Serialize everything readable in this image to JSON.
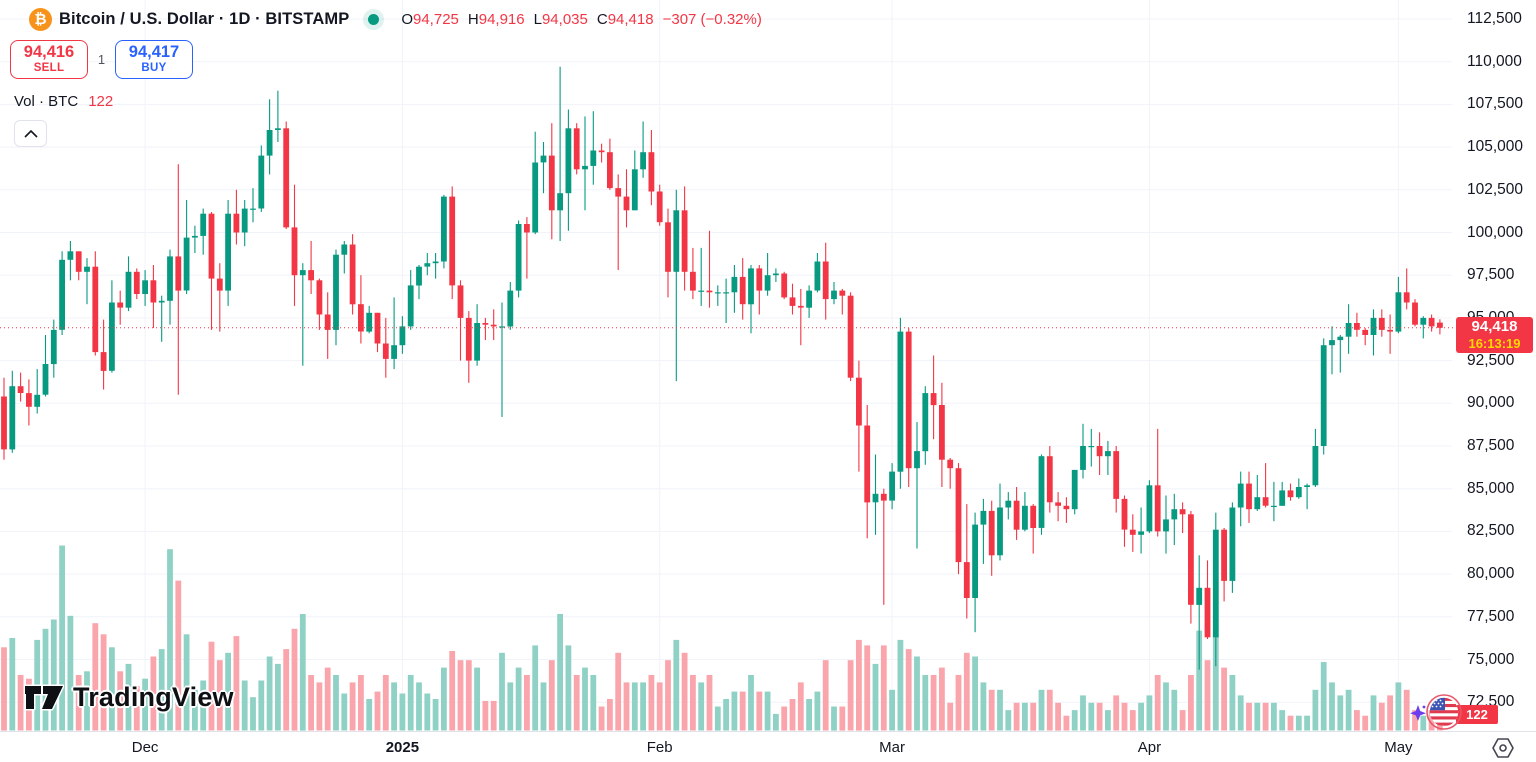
{
  "header": {
    "symbol_title": "Bitcoin / U.S. Dollar · 1D · BITSTAMP",
    "bitcoin_glyph": "₿",
    "ohlc": [
      {
        "label": "O",
        "value": "94,725"
      },
      {
        "label": "H",
        "value": "94,916"
      },
      {
        "label": "L",
        "value": "94,035"
      },
      {
        "label": "C",
        "value": "94,418"
      }
    ],
    "change_text": "−307 (−0.32%)",
    "sell_button": {
      "price": "94,416",
      "label": "SELL"
    },
    "spread": "1",
    "buy_button": {
      "price": "94,417",
      "label": "BUY"
    },
    "volume_row": {
      "label": "Vol · BTC",
      "value": "122"
    }
  },
  "watermark_text": "TradingView",
  "price_label": {
    "price": "94,418",
    "countdown": "16:13:19"
  },
  "volume_axis_label": "122",
  "time_axis": [
    {
      "label": "Dec",
      "candle_index": 17,
      "bold": false
    },
    {
      "label": "2025",
      "candle_index": 48,
      "bold": true
    },
    {
      "label": "Feb",
      "candle_index": 79,
      "bold": false
    },
    {
      "label": "Mar",
      "candle_index": 107,
      "bold": false
    },
    {
      "label": "Apr",
      "candle_index": 138,
      "bold": false
    },
    {
      "label": "May",
      "candle_index": 168,
      "bold": false
    }
  ],
  "colors": {
    "up": "#089981",
    "down": "#f23645",
    "volume_up": "#90d1c6",
    "volume_down": "#f9a5ab",
    "grid": "#f0f3fa",
    "axis_border": "#e0e3eb",
    "text": "#131722",
    "buy_blue": "#2962ff",
    "countdown_yellow": "#ffd800",
    "bitcoin_orange": "#f7931a"
  },
  "chart_data": {
    "type": "candlestick",
    "title": "Bitcoin / U.S. Dollar",
    "interval": "1D",
    "exchange": "BITSTAMP",
    "legend": [
      "price candles",
      "volume (BTC)"
    ],
    "current_price": 94418,
    "current_volume_btc": 122,
    "grid": true,
    "price_axis_ticks": [
      {
        "label": "112,500",
        "value": 112500
      },
      {
        "label": "110,000",
        "value": 110000
      },
      {
        "label": "107,500",
        "value": 107500
      },
      {
        "label": "105,000",
        "value": 105000
      },
      {
        "label": "102,500",
        "value": 102500
      },
      {
        "label": "100,000",
        "value": 100000
      },
      {
        "label": "97,500",
        "value": 97500
      },
      {
        "label": "95,000",
        "value": 95000
      },
      {
        "label": "92,500",
        "value": 92500
      },
      {
        "label": "90,000",
        "value": 90000
      },
      {
        "label": "87,500",
        "value": 87500
      },
      {
        "label": "85,000",
        "value": 85000
      },
      {
        "label": "82,500",
        "value": 82500
      },
      {
        "label": "80,000",
        "value": 80000
      },
      {
        "label": "77,500",
        "value": 77500
      },
      {
        "label": "75,000",
        "value": 75000
      },
      {
        "label": "72,500",
        "value": 72500
      }
    ],
    "candle_format": [
      "open",
      "high",
      "low",
      "close",
      "relative_volume"
    ],
    "candles": [
      [
        90400,
        91500,
        86700,
        87300,
        45
      ],
      [
        87300,
        91900,
        87100,
        91000,
        50
      ],
      [
        91000,
        91800,
        90100,
        90600,
        30
      ],
      [
        90600,
        91400,
        88700,
        89800,
        28
      ],
      [
        89800,
        92000,
        89400,
        90500,
        49
      ],
      [
        90500,
        94000,
        90400,
        92300,
        55
      ],
      [
        92300,
        94900,
        91500,
        94300,
        60
      ],
      [
        94300,
        98900,
        94000,
        98400,
        100
      ],
      [
        98400,
        99500,
        97200,
        98900,
        62
      ],
      [
        98900,
        98900,
        97200,
        97700,
        30
      ],
      [
        97700,
        98500,
        95800,
        98000,
        32
      ],
      [
        98000,
        98900,
        92800,
        93000,
        58
      ],
      [
        93000,
        94900,
        90800,
        91900,
        52
      ],
      [
        91900,
        97200,
        91800,
        95900,
        45
      ],
      [
        95900,
        96600,
        94600,
        95600,
        32
      ],
      [
        95600,
        98600,
        95400,
        97700,
        36
      ],
      [
        97700,
        97900,
        96100,
        96400,
        24
      ],
      [
        96400,
        97800,
        95700,
        97200,
        28
      ],
      [
        97200,
        98100,
        94400,
        95900,
        40
      ],
      [
        95900,
        96300,
        93600,
        96000,
        44
      ],
      [
        96000,
        99000,
        94600,
        98600,
        98
      ],
      [
        98600,
        104000,
        90500,
        96600,
        81
      ],
      [
        96600,
        101900,
        96400,
        99700,
        52
      ],
      [
        99700,
        100400,
        98800,
        99800,
        22
      ],
      [
        99800,
        101400,
        98700,
        101100,
        27
      ],
      [
        101100,
        101200,
        94300,
        97300,
        48
      ],
      [
        97300,
        98200,
        94200,
        96600,
        38
      ],
      [
        96600,
        101900,
        95700,
        101100,
        42
      ],
      [
        101100,
        102500,
        99300,
        100000,
        51
      ],
      [
        100000,
        101900,
        99200,
        101400,
        27
      ],
      [
        101400,
        102600,
        100600,
        101400,
        18
      ],
      [
        101400,
        105100,
        101200,
        104500,
        27
      ],
      [
        104500,
        107800,
        103400,
        106000,
        40
      ],
      [
        106000,
        108300,
        105300,
        106100,
        36
      ],
      [
        106100,
        106500,
        100200,
        100300,
        44
      ],
      [
        100300,
        102800,
        95700,
        97500,
        55
      ],
      [
        97500,
        98200,
        92200,
        97800,
        63
      ],
      [
        97800,
        99500,
        96400,
        97200,
        30
      ],
      [
        97200,
        97300,
        94300,
        95200,
        26
      ],
      [
        95200,
        96500,
        92600,
        94300,
        34
      ],
      [
        94300,
        99000,
        93400,
        98700,
        30
      ],
      [
        98700,
        99500,
        97600,
        99300,
        20
      ],
      [
        99300,
        99900,
        95200,
        95800,
        26
      ],
      [
        95800,
        97500,
        93500,
        94200,
        30
      ],
      [
        94200,
        95700,
        94100,
        95300,
        17
      ],
      [
        95300,
        95300,
        93000,
        93500,
        21
      ],
      [
        93500,
        95000,
        91500,
        92600,
        30
      ],
      [
        92600,
        96200,
        92000,
        93400,
        26
      ],
      [
        93400,
        95100,
        92900,
        94500,
        20
      ],
      [
        94500,
        97800,
        94300,
        96900,
        30
      ],
      [
        96900,
        98100,
        96100,
        98000,
        26
      ],
      [
        98000,
        98800,
        97500,
        98200,
        20
      ],
      [
        98200,
        98800,
        97300,
        98300,
        17
      ],
      [
        98300,
        102200,
        97900,
        102100,
        34
      ],
      [
        102100,
        102700,
        96100,
        96900,
        43
      ],
      [
        96900,
        97200,
        92500,
        95000,
        38
      ],
      [
        95000,
        95400,
        91200,
        92500,
        38
      ],
      [
        92500,
        95800,
        92200,
        94700,
        34
      ],
      [
        94700,
        95000,
        93700,
        94600,
        16
      ],
      [
        94600,
        95500,
        93700,
        94500,
        16
      ],
      [
        94500,
        95900,
        89200,
        94500,
        42
      ],
      [
        94500,
        97100,
        94300,
        96600,
        26
      ],
      [
        96600,
        100700,
        96200,
        100500,
        34
      ],
      [
        100500,
        100900,
        97300,
        100000,
        30
      ],
      [
        100000,
        105900,
        99900,
        104100,
        46
      ],
      [
        104100,
        105300,
        102300,
        104500,
        26
      ],
      [
        104500,
        106400,
        99600,
        101300,
        38
      ],
      [
        101300,
        109700,
        99500,
        102300,
        63
      ],
      [
        102300,
        107200,
        100100,
        106100,
        46
      ],
      [
        106100,
        106400,
        103400,
        103700,
        30
      ],
      [
        103700,
        106800,
        101300,
        103900,
        34
      ],
      [
        103900,
        107100,
        102800,
        104800,
        30
      ],
      [
        104800,
        105200,
        104100,
        104700,
        13
      ],
      [
        104700,
        105500,
        102500,
        102600,
        17
      ],
      [
        102600,
        103400,
        97800,
        102100,
        42
      ],
      [
        102100,
        103700,
        100300,
        101300,
        26
      ],
      [
        101300,
        104800,
        101300,
        103700,
        26
      ],
      [
        103700,
        106500,
        103200,
        104700,
        26
      ],
      [
        104700,
        106000,
        101600,
        102400,
        30
      ],
      [
        102400,
        102800,
        100400,
        100600,
        26
      ],
      [
        100600,
        101400,
        96200,
        97700,
        38
      ],
      [
        97700,
        102500,
        91300,
        101300,
        49
      ],
      [
        101300,
        102700,
        96600,
        97700,
        42
      ],
      [
        97700,
        99100,
        96100,
        96600,
        30
      ],
      [
        96600,
        99100,
        95700,
        96600,
        26
      ],
      [
        96600,
        100100,
        95600,
        96500,
        30
      ],
      [
        96500,
        96900,
        95700,
        96500,
        13
      ],
      [
        96500,
        97300,
        94700,
        96500,
        17
      ],
      [
        96500,
        98100,
        95300,
        97400,
        21
      ],
      [
        97400,
        98500,
        94900,
        95800,
        21
      ],
      [
        95800,
        98100,
        94100,
        97900,
        30
      ],
      [
        97900,
        98100,
        95200,
        96600,
        21
      ],
      [
        96600,
        98800,
        96300,
        97500,
        21
      ],
      [
        97500,
        97900,
        97100,
        97600,
        9
      ],
      [
        97600,
        97700,
        96100,
        96200,
        13
      ],
      [
        96200,
        97000,
        95200,
        95700,
        17
      ],
      [
        95700,
        96700,
        93400,
        95600,
        26
      ],
      [
        95600,
        96900,
        95000,
        96600,
        17
      ],
      [
        96600,
        98800,
        96500,
        98300,
        21
      ],
      [
        98300,
        99400,
        94900,
        96100,
        38
      ],
      [
        96100,
        97100,
        95800,
        96600,
        13
      ],
      [
        96600,
        96700,
        95200,
        96300,
        13
      ],
      [
        96300,
        96500,
        91300,
        91500,
        38
      ],
      [
        91500,
        92500,
        86000,
        88700,
        49
      ],
      [
        88700,
        89900,
        82100,
        84200,
        46
      ],
      [
        84200,
        87000,
        82300,
        84700,
        36
      ],
      [
        84700,
        85000,
        78200,
        84300,
        46
      ],
      [
        84300,
        86500,
        83800,
        86000,
        22
      ],
      [
        86000,
        95000,
        85000,
        94200,
        49
      ],
      [
        94200,
        94400,
        85100,
        86200,
        44
      ],
      [
        86200,
        88900,
        81500,
        87200,
        40
      ],
      [
        87200,
        91000,
        86400,
        90600,
        30
      ],
      [
        90600,
        92800,
        87900,
        89900,
        30
      ],
      [
        89900,
        91200,
        85100,
        86700,
        34
      ],
      [
        86700,
        86800,
        85000,
        86200,
        15
      ],
      [
        86200,
        86500,
        80000,
        80700,
        30
      ],
      [
        80700,
        84100,
        77400,
        78600,
        42
      ],
      [
        78600,
        83600,
        76600,
        82900,
        40
      ],
      [
        82900,
        84400,
        80600,
        83700,
        26
      ],
      [
        83700,
        84300,
        79900,
        81100,
        22
      ],
      [
        81100,
        85300,
        80800,
        83900,
        22
      ],
      [
        83900,
        84800,
        83200,
        84300,
        11
      ],
      [
        84300,
        85100,
        82000,
        82600,
        15
      ],
      [
        82600,
        84800,
        82500,
        84000,
        15
      ],
      [
        84000,
        84100,
        81200,
        82700,
        15
      ],
      [
        82700,
        87000,
        82300,
        86900,
        22
      ],
      [
        86900,
        87500,
        83600,
        84200,
        22
      ],
      [
        84200,
        84800,
        83100,
        84000,
        15
      ],
      [
        84000,
        84500,
        83000,
        83800,
        8
      ],
      [
        83800,
        86100,
        83500,
        86100,
        11
      ],
      [
        86100,
        88800,
        85600,
        87500,
        19
      ],
      [
        87500,
        88500,
        86300,
        87500,
        15
      ],
      [
        87500,
        88300,
        85800,
        86900,
        15
      ],
      [
        86900,
        87800,
        85800,
        87200,
        11
      ],
      [
        87200,
        87500,
        83600,
        84400,
        19
      ],
      [
        84400,
        84600,
        81600,
        82600,
        15
      ],
      [
        82600,
        83500,
        81300,
        82300,
        11
      ],
      [
        82300,
        83900,
        81200,
        82500,
        15
      ],
      [
        82500,
        85500,
        82400,
        85200,
        19
      ],
      [
        85200,
        88500,
        82200,
        82500,
        30
      ],
      [
        82500,
        84600,
        81200,
        83200,
        26
      ],
      [
        83200,
        84700,
        81700,
        83800,
        22
      ],
      [
        83800,
        84200,
        82400,
        83500,
        11
      ],
      [
        83500,
        83700,
        77100,
        78200,
        30
      ],
      [
        78200,
        81100,
        74400,
        79200,
        54
      ],
      [
        79200,
        80800,
        76200,
        76300,
        38
      ],
      [
        76300,
        83600,
        74600,
        82600,
        51
      ],
      [
        82600,
        82700,
        78400,
        79600,
        34
      ],
      [
        79600,
        84200,
        78900,
        83900,
        30
      ],
      [
        83900,
        86000,
        82800,
        85300,
        19
      ],
      [
        85300,
        86000,
        83000,
        83800,
        15
      ],
      [
        83800,
        85800,
        83700,
        84500,
        15
      ],
      [
        84500,
        86500,
        83900,
        84000,
        15
      ],
      [
        84000,
        85400,
        83100,
        84000,
        15
      ],
      [
        84000,
        85400,
        84000,
        84900,
        11
      ],
      [
        84900,
        85300,
        84300,
        84500,
        8
      ],
      [
        84500,
        85600,
        84400,
        85100,
        8
      ],
      [
        85100,
        85300,
        83800,
        85200,
        8
      ],
      [
        85200,
        88500,
        85100,
        87500,
        22
      ],
      [
        87500,
        93800,
        87000,
        93400,
        37
      ],
      [
        93400,
        94500,
        91700,
        93700,
        26
      ],
      [
        93700,
        94000,
        91800,
        93900,
        19
      ],
      [
        93900,
        95800,
        92900,
        94700,
        22
      ],
      [
        94700,
        95300,
        93900,
        94300,
        11
      ],
      [
        94300,
        94400,
        93400,
        94000,
        8
      ],
      [
        94000,
        95500,
        92800,
        95000,
        19
      ],
      [
        95000,
        95500,
        93900,
        94300,
        15
      ],
      [
        94300,
        95200,
        92900,
        94200,
        19
      ],
      [
        94200,
        97400,
        94100,
        96500,
        26
      ],
      [
        96500,
        97900,
        95500,
        95900,
        22
      ],
      [
        95900,
        96100,
        94500,
        94600,
        11
      ],
      [
        94600,
        95100,
        93800,
        95000,
        8
      ],
      [
        95000,
        95200,
        94200,
        94500,
        11
      ],
      [
        94725,
        94916,
        94035,
        94418,
        12
      ]
    ]
  }
}
